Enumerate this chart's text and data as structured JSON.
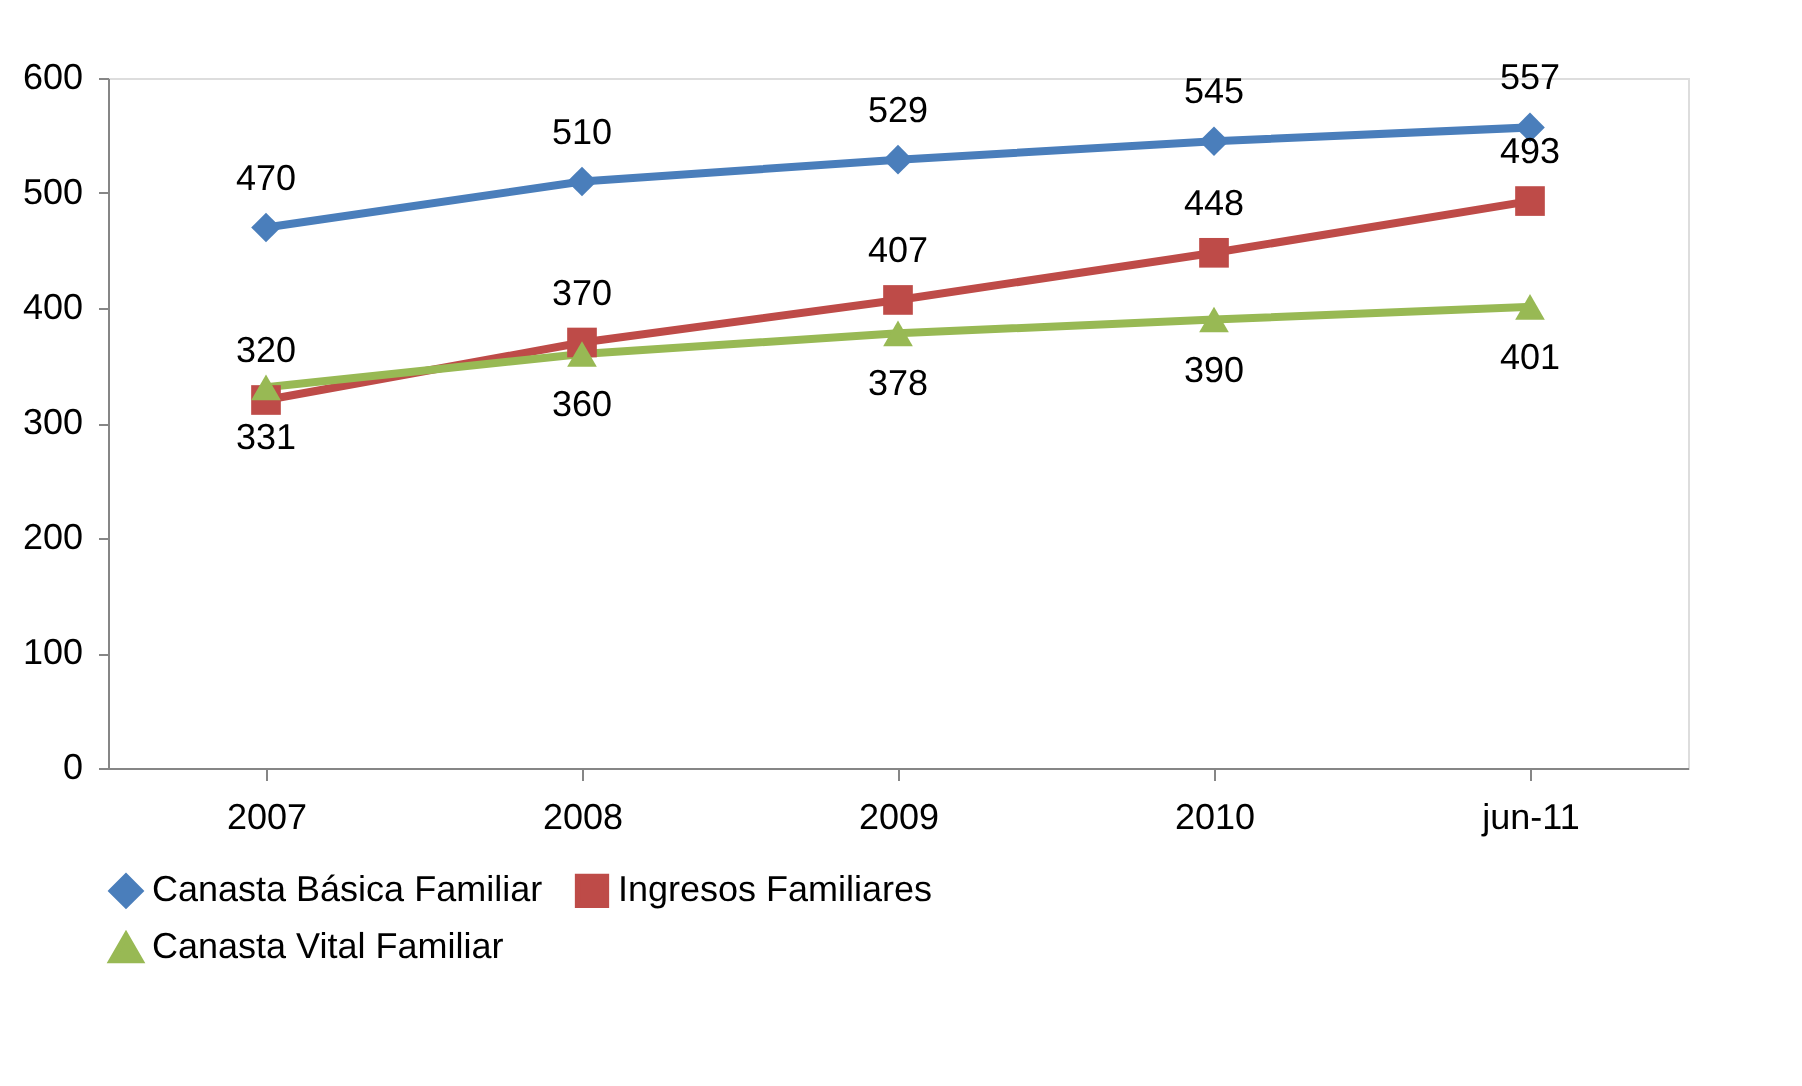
{
  "chart_data": {
    "type": "line",
    "categories": [
      "2007",
      "2008",
      "2009",
      "2010",
      "jun-11"
    ],
    "series": [
      {
        "name": "Canasta Básica Familiar",
        "color": "#4a7ebb",
        "marker": "diamond",
        "values": [
          470,
          510,
          529,
          545,
          557
        ]
      },
      {
        "name": "Ingresos Familiares",
        "color": "#be4b48",
        "marker": "square",
        "values": [
          320,
          370,
          407,
          448,
          493
        ]
      },
      {
        "name": "Canasta Vital Familiar",
        "color": "#98b954",
        "marker": "triangle",
        "values": [
          331,
          360,
          378,
          390,
          401
        ]
      }
    ],
    "ylim": [
      0,
      600
    ],
    "yticks": [
      0,
      100,
      200,
      300,
      400,
      500,
      600
    ],
    "grid": false,
    "legend": "bottom",
    "data_labels": true,
    "line_style": "solid"
  }
}
